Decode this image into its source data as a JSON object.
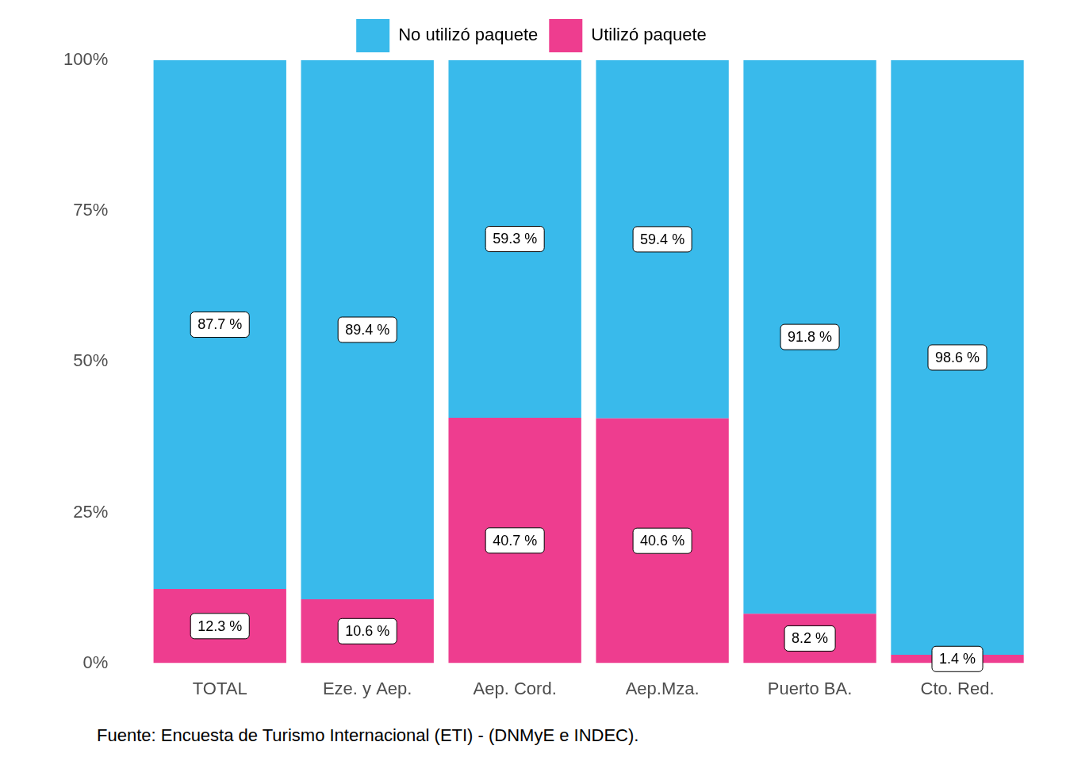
{
  "chart_data": {
    "type": "bar",
    "source": "Fuente: Encuesta de Turismo Internacional (ETI) - (DNMyE e INDEC).",
    "categories": [
      "TOTAL",
      "Eze. y Aep.",
      "Aep. Cord.",
      "Aep.Mza.",
      "Puerto BA.",
      "Cto. Red."
    ],
    "series": [
      {
        "name": "No utilizó paquete",
        "color": "#39BAEB",
        "values": [
          87.7,
          89.4,
          59.3,
          59.4,
          91.8,
          98.6
        ],
        "value_labels": [
          "87.7 %",
          "89.4 %",
          "59.3 %",
          "59.4 %",
          "91.8 %",
          "98.6 %"
        ]
      },
      {
        "name": "Utilizó paquete",
        "color": "#EE3D8F",
        "values": [
          12.3,
          10.6,
          40.7,
          40.6,
          8.2,
          1.4
        ],
        "value_labels": [
          "12.3 %",
          "10.6 %",
          "40.7 %",
          "40.6 %",
          "8.2 %",
          "1.4 %"
        ]
      }
    ],
    "stacked": true,
    "data_labels": true,
    "legend": "top",
    "grid": false,
    "ylim": [
      0,
      100
    ],
    "yticks": [
      {
        "value": 0,
        "label": "0%"
      },
      {
        "value": 25,
        "label": "25%"
      },
      {
        "value": 50,
        "label": "50%"
      },
      {
        "value": 75,
        "label": "75%"
      },
      {
        "value": 100,
        "label": "100%"
      }
    ]
  }
}
